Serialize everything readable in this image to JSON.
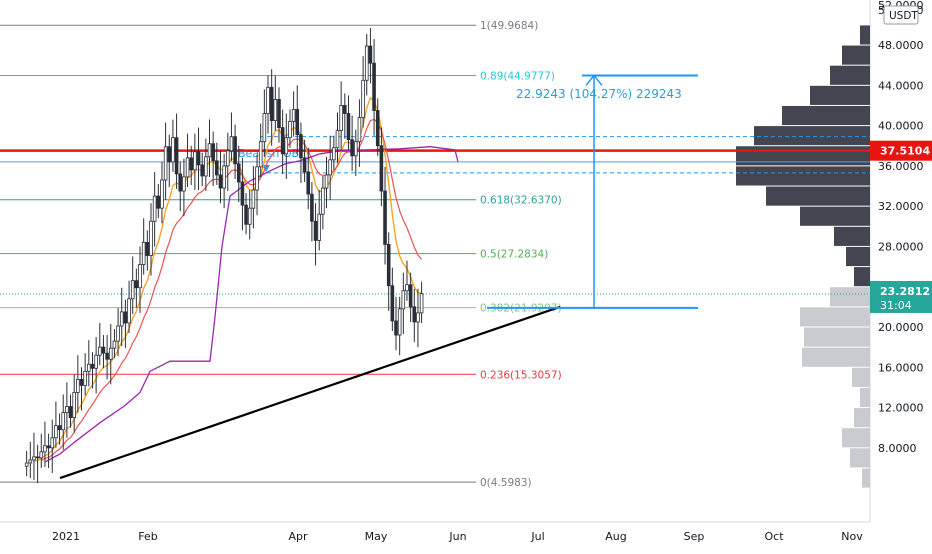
{
  "chart_data": {
    "type": "candlestick",
    "title": "",
    "currency": "USDT",
    "price_axis": {
      "range": [
        5.0,
        54.0
      ],
      "ticks": [
        "8.0000",
        "12.0000",
        "16.0000",
        "20.0000",
        "24.0000",
        "28.0000",
        "32.0000",
        "36.0000",
        "40.0000",
        "44.0000",
        "48.0000",
        "52.0000"
      ],
      "top_tick_partial": "54.0000"
    },
    "time_axis": {
      "labels": [
        "2021",
        "Feb",
        "Apr",
        "May",
        "Jun",
        "Jul",
        "Aug",
        "Sep",
        "Oct",
        "Nov"
      ]
    },
    "last_price": {
      "value": "23.2812",
      "countdown": "31:04",
      "color": "#26a69a"
    },
    "red_level": {
      "value": "37.5104",
      "color": "#e8140f"
    },
    "fibonacci": [
      {
        "label": "1(49.9684)",
        "value": 49.9684,
        "color": "#787b86"
      },
      {
        "label": "0.89(44.9777)",
        "value": 44.9777,
        "color": "#26c6da"
      },
      {
        "label": "0.618(32.6370)",
        "value": 32.637,
        "color": "#26a69a"
      },
      {
        "label": "0.5(27.2834)",
        "value": 27.2834,
        "color": "#4caf50"
      },
      {
        "label": "0.382(21.9297)",
        "value": 21.9297,
        "color": "#81c784"
      },
      {
        "label": "0.236(15.3057)",
        "value": 15.3057,
        "color": "#f23645"
      },
      {
        "label": "0(4.5983)",
        "value": 4.5983,
        "color": "#787b86"
      }
    ],
    "bearish_ob": {
      "label": "Bearish OB",
      "top": 38.9,
      "bottom": 35.3,
      "color": "#2196f3"
    },
    "measure": {
      "label": "22.9243 (104.27%) 229243",
      "from": 21.9,
      "to": 44.98,
      "color": "#2196f3"
    },
    "trendline": {
      "from_price": 5.0,
      "to_price": 22.0,
      "color": "#000000"
    },
    "ohlc_day_index_start": "2021-01-01",
    "candles_close_approx": [
      6.5,
      6.8,
      7.1,
      7.0,
      7.6,
      8.2,
      8.0,
      9.0,
      10.2,
      9.8,
      11.5,
      12.1,
      11.0,
      13.5,
      14.8,
      14.2,
      15.6,
      16.3,
      15.9,
      17.2,
      18.0,
      17.4,
      16.8,
      17.9,
      18.6,
      20.1,
      21.5,
      20.4,
      22.8,
      24.6,
      23.9,
      26.2,
      28.4,
      27.1,
      30.5,
      33.0,
      31.8,
      34.6,
      37.9,
      36.4,
      38.8,
      35.2,
      33.5,
      34.9,
      36.8,
      35.6,
      37.4,
      36.1,
      35.0,
      36.9,
      38.2,
      36.5,
      35.1,
      33.8,
      36.0,
      37.5,
      38.9,
      36.2,
      34.4,
      32.1,
      30.2,
      31.8,
      33.6,
      35.9,
      38.4,
      41.2,
      43.8,
      40.5,
      42.6,
      39.8,
      37.2,
      38.8,
      40.4,
      41.6,
      39.1,
      36.8,
      35.4,
      33.2,
      30.5,
      28.6,
      31.2,
      33.8,
      35.1,
      36.6,
      37.8,
      39.5,
      42.0,
      41.2,
      38.6,
      37.0,
      38.4,
      40.8,
      44.5,
      47.9,
      46.2,
      41.5,
      38.0,
      33.5,
      28.2,
      24.1,
      20.6,
      19.2,
      21.8,
      23.6,
      24.2,
      22.0,
      20.5,
      21.4,
      23.3
    ]
  }
}
